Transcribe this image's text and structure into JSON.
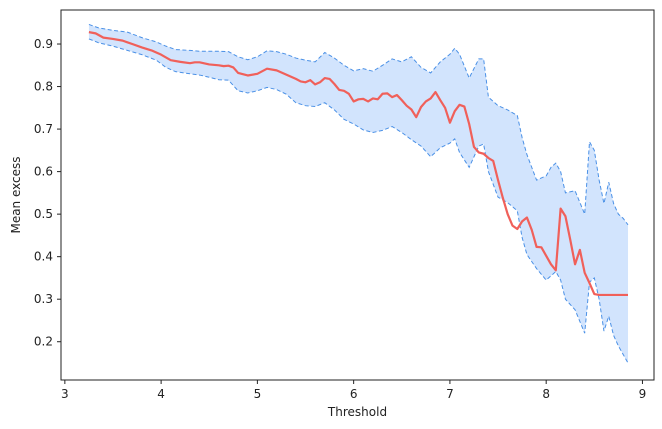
{
  "chart_data": {
    "type": "line",
    "title": "",
    "xlabel": "Threshold",
    "ylabel": "Mean excess",
    "xlim": [
      2.96,
      9.12
    ],
    "ylim": [
      0.11,
      0.98
    ],
    "xticks": [
      3,
      4,
      5,
      6,
      7,
      8,
      9
    ],
    "yticks": [
      0.2,
      0.3,
      0.4,
      0.5,
      0.6,
      0.7,
      0.8,
      0.9
    ],
    "grid": false,
    "colors": {
      "line": "#f0605a",
      "band_fill": "#d2e4fd",
      "band_edge": "#4a90e6",
      "axis": "#222222"
    },
    "series": [
      {
        "x": [
          3.25,
          3.32,
          3.4,
          3.5,
          3.6,
          3.7,
          3.8,
          3.9,
          4.0,
          4.1,
          4.2,
          4.3,
          4.35,
          4.4,
          4.5,
          4.6,
          4.65,
          4.7,
          4.75,
          4.8,
          4.9,
          5.0,
          5.1,
          5.2,
          5.3,
          5.4,
          5.45,
          5.5,
          5.55,
          5.6,
          5.65,
          5.7,
          5.75,
          5.8,
          5.85,
          5.9,
          5.95,
          6.0,
          6.05,
          6.1,
          6.15,
          6.2,
          6.25,
          6.3,
          6.35,
          6.4,
          6.45,
          6.5,
          6.55,
          6.6,
          6.65,
          6.7,
          6.75,
          6.8,
          6.85,
          6.9,
          6.95,
          7.0,
          7.05,
          7.1,
          7.15,
          7.2,
          7.25,
          7.3,
          7.35,
          7.4,
          7.45,
          7.5,
          7.55,
          7.6,
          7.65,
          7.7,
          7.75,
          7.8,
          7.85,
          7.9,
          7.95,
          8.0,
          8.05,
          8.1,
          8.15,
          8.2,
          8.25,
          8.3,
          8.35,
          8.4,
          8.45,
          8.5,
          8.55,
          8.6,
          8.65,
          8.7,
          8.75,
          8.8,
          8.85
        ],
        "y": [
          0.928,
          0.925,
          0.915,
          0.912,
          0.908,
          0.9,
          0.892,
          0.885,
          0.875,
          0.862,
          0.858,
          0.855,
          0.857,
          0.857,
          0.852,
          0.85,
          0.848,
          0.849,
          0.845,
          0.832,
          0.826,
          0.83,
          0.842,
          0.838,
          0.828,
          0.818,
          0.812,
          0.81,
          0.815,
          0.805,
          0.81,
          0.82,
          0.818,
          0.806,
          0.792,
          0.79,
          0.783,
          0.765,
          0.77,
          0.771,
          0.765,
          0.772,
          0.77,
          0.783,
          0.784,
          0.775,
          0.78,
          0.768,
          0.755,
          0.746,
          0.728,
          0.752,
          0.765,
          0.772,
          0.787,
          0.768,
          0.75,
          0.715,
          0.742,
          0.757,
          0.753,
          0.712,
          0.658,
          0.645,
          0.642,
          0.632,
          0.625,
          0.58,
          0.538,
          0.5,
          0.473,
          0.465,
          0.483,
          0.492,
          0.463,
          0.423,
          0.422,
          0.402,
          0.382,
          0.368,
          0.513,
          0.495,
          0.44,
          0.382,
          0.416,
          0.362,
          0.338,
          0.312,
          0.31,
          0.31,
          0.31,
          0.31,
          0.31,
          0.31,
          0.31
        ]
      }
    ],
    "band": {
      "x": [
        3.25,
        3.35,
        3.5,
        3.65,
        3.8,
        3.95,
        4.05,
        4.15,
        4.3,
        4.4,
        4.5,
        4.6,
        4.7,
        4.8,
        4.9,
        5.0,
        5.1,
        5.2,
        5.3,
        5.4,
        5.5,
        5.6,
        5.7,
        5.8,
        5.9,
        6.0,
        6.1,
        6.2,
        6.3,
        6.4,
        6.5,
        6.6,
        6.7,
        6.8,
        6.9,
        7.0,
        7.05,
        7.1,
        7.2,
        7.3,
        7.35,
        7.4,
        7.5,
        7.6,
        7.7,
        7.75,
        7.8,
        7.9,
        8.0,
        8.05,
        8.1,
        8.15,
        8.2,
        8.3,
        8.4,
        8.45,
        8.5,
        8.55,
        8.6,
        8.65,
        8.7,
        8.75,
        8.8,
        8.85
      ],
      "upper": [
        0.946,
        0.938,
        0.932,
        0.928,
        0.915,
        0.905,
        0.895,
        0.887,
        0.885,
        0.883,
        0.883,
        0.883,
        0.882,
        0.87,
        0.863,
        0.87,
        0.884,
        0.882,
        0.876,
        0.867,
        0.862,
        0.858,
        0.88,
        0.867,
        0.85,
        0.837,
        0.842,
        0.836,
        0.85,
        0.865,
        0.858,
        0.87,
        0.845,
        0.832,
        0.858,
        0.876,
        0.89,
        0.876,
        0.82,
        0.865,
        0.865,
        0.775,
        0.755,
        0.745,
        0.732,
        0.68,
        0.64,
        0.58,
        0.59,
        0.61,
        0.62,
        0.6,
        0.55,
        0.555,
        0.5,
        0.67,
        0.65,
        0.58,
        0.525,
        0.575,
        0.525,
        0.5,
        0.49,
        0.475
      ],
      "lower": [
        0.912,
        0.903,
        0.895,
        0.885,
        0.875,
        0.862,
        0.845,
        0.835,
        0.83,
        0.827,
        0.822,
        0.816,
        0.815,
        0.79,
        0.785,
        0.79,
        0.798,
        0.793,
        0.782,
        0.762,
        0.755,
        0.753,
        0.762,
        0.745,
        0.723,
        0.712,
        0.698,
        0.692,
        0.697,
        0.706,
        0.692,
        0.675,
        0.66,
        0.635,
        0.656,
        0.667,
        0.677,
        0.645,
        0.61,
        0.66,
        0.665,
        0.6,
        0.54,
        0.527,
        0.508,
        0.445,
        0.405,
        0.372,
        0.345,
        0.355,
        0.365,
        0.345,
        0.3,
        0.275,
        0.22,
        0.34,
        0.35,
        0.3,
        0.225,
        0.26,
        0.215,
        0.19,
        0.17,
        0.15
      ]
    }
  }
}
